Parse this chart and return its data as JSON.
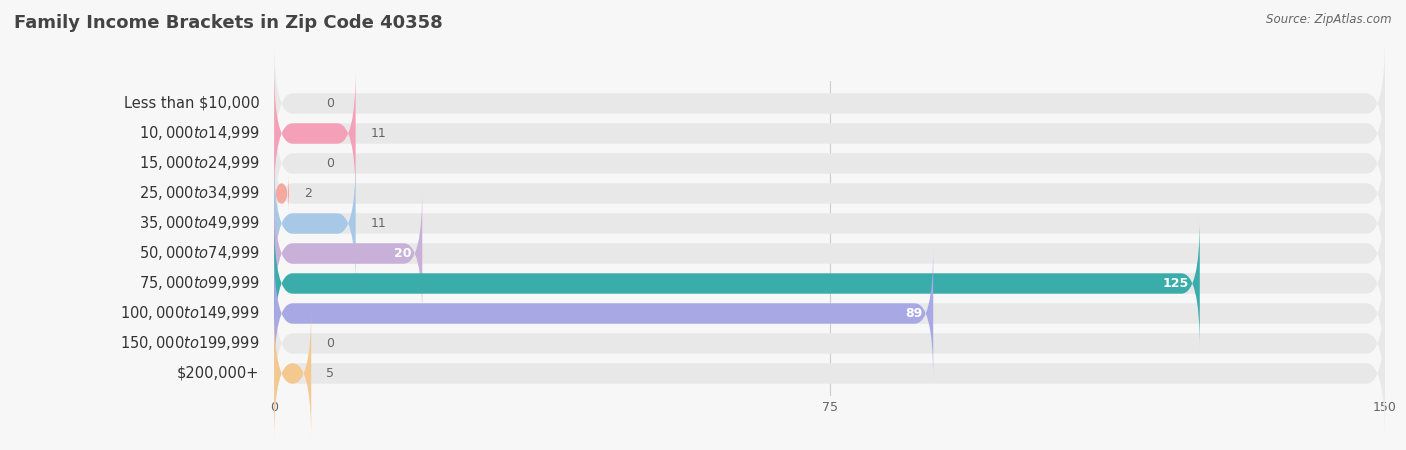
{
  "title": "Family Income Brackets in Zip Code 40358",
  "source": "Source: ZipAtlas.com",
  "categories": [
    "Less than $10,000",
    "$10,000 to $14,999",
    "$15,000 to $24,999",
    "$25,000 to $34,999",
    "$35,000 to $49,999",
    "$50,000 to $74,999",
    "$75,000 to $99,999",
    "$100,000 to $149,999",
    "$150,000 to $199,999",
    "$200,000+"
  ],
  "values": [
    0,
    11,
    0,
    2,
    11,
    20,
    125,
    89,
    0,
    5
  ],
  "bar_colors": [
    "#b0b0d8",
    "#f4a0b8",
    "#f5c890",
    "#f4a8a0",
    "#a8c8e8",
    "#c8b0d8",
    "#3aacaa",
    "#a8a8e4",
    "#f4a0b8",
    "#f5c890"
  ],
  "xlim": [
    0,
    150
  ],
  "xticks": [
    0,
    75,
    150
  ],
  "bg_color": "#f7f7f7",
  "bar_bg_color": "#e8e8e8",
  "title_fontsize": 13,
  "label_fontsize": 10.5,
  "value_fontsize": 9,
  "value_color_inside": "#ffffff",
  "value_color_outside": "#666666",
  "title_color": "#444444",
  "label_color": "#333333",
  "source_color": "#666666"
}
